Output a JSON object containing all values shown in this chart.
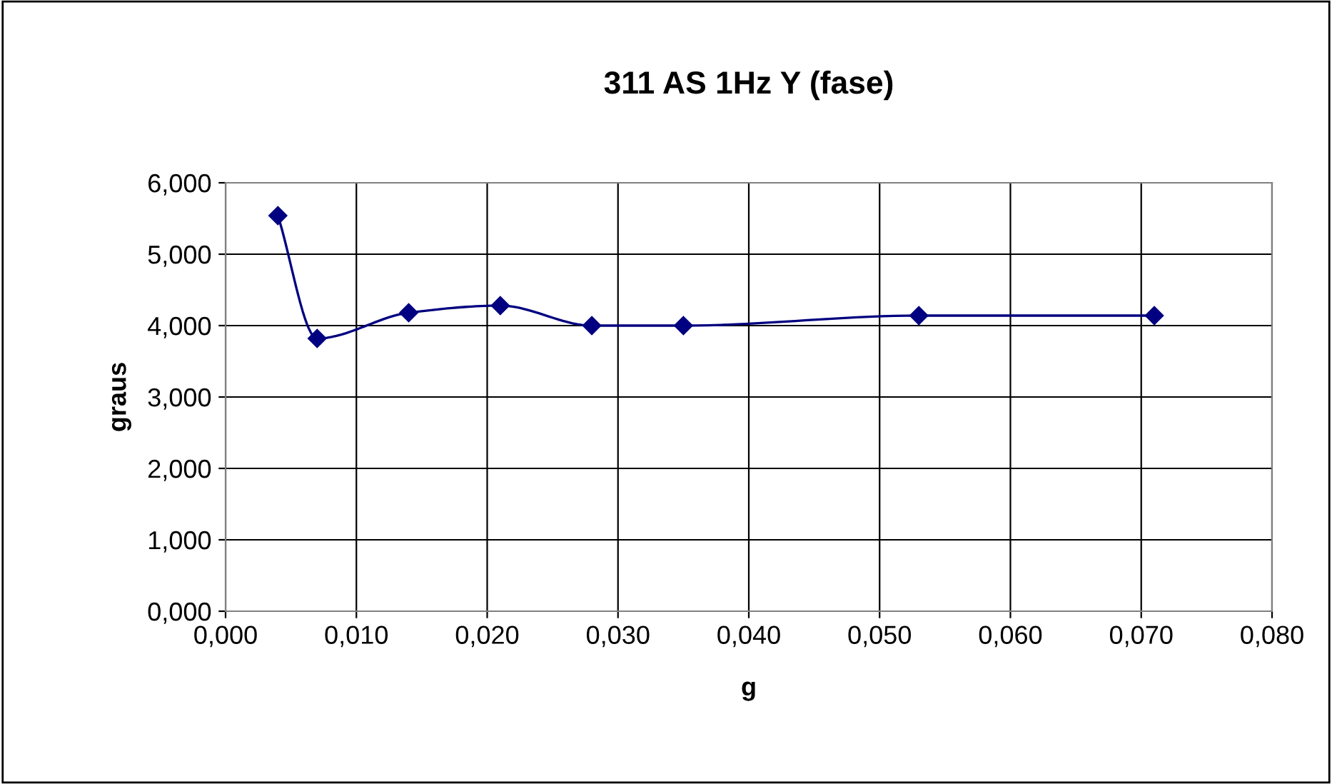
{
  "chart_data": {
    "type": "line",
    "title": "311 AS 1Hz Y (fase)",
    "xlabel": "g",
    "ylabel": "graus",
    "x": [
      0.004,
      0.007,
      0.014,
      0.021,
      0.028,
      0.035,
      0.053,
      0.071
    ],
    "series": [
      {
        "color": "#000080",
        "values": [
          5.54,
          3.82,
          4.18,
          4.28,
          4.0,
          4.0,
          4.14,
          4.14
        ]
      }
    ],
    "xlim": [
      0,
      0.08
    ],
    "xticks": [
      {
        "value": 0,
        "label": "0,000"
      },
      {
        "value": 0.01,
        "label": "0,010"
      },
      {
        "value": 0.02,
        "label": "0,020"
      },
      {
        "value": 0.03,
        "label": "0,030"
      },
      {
        "value": 0.04,
        "label": "0,040"
      },
      {
        "value": 0.05,
        "label": "0,050"
      },
      {
        "value": 0.06,
        "label": "0,060"
      },
      {
        "value": 0.07,
        "label": "0,070"
      },
      {
        "value": 0.08,
        "label": "0,080"
      }
    ],
    "ylim": [
      0,
      6
    ],
    "yticks": [
      {
        "value": 0,
        "label": "0,000"
      },
      {
        "value": 1,
        "label": "1,000"
      },
      {
        "value": 2,
        "label": "2,000"
      },
      {
        "value": 3,
        "label": "3,000"
      },
      {
        "value": 4,
        "label": "4,000"
      },
      {
        "value": 5,
        "label": "5,000"
      },
      {
        "value": 6,
        "label": "6,000"
      }
    ],
    "grid": true,
    "marker": "diamond",
    "line_style": "solid"
  }
}
